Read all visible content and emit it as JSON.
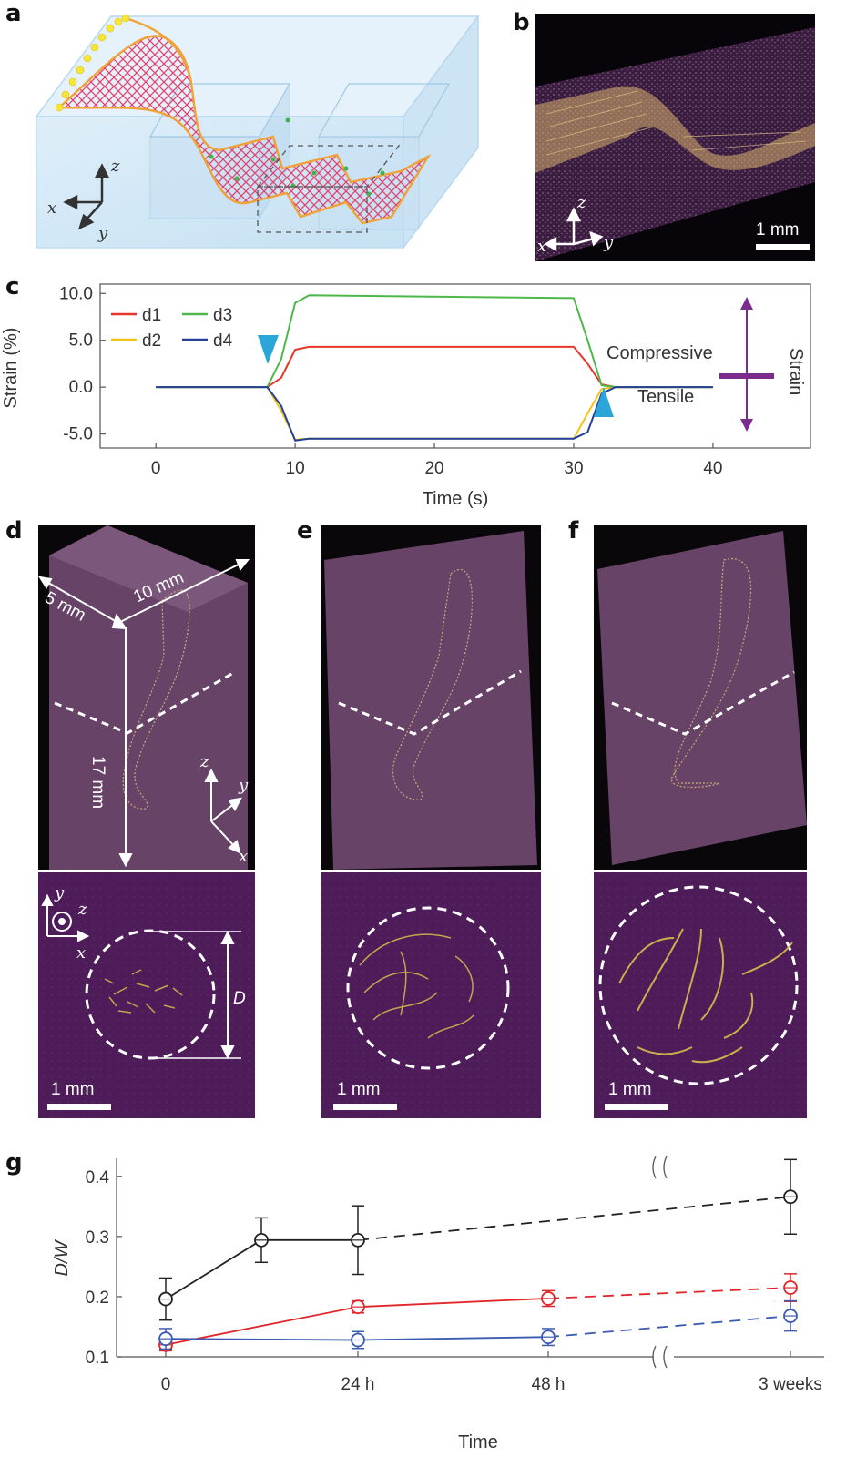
{
  "panels": {
    "a": "a",
    "b": "b",
    "c": "c",
    "d": "d",
    "e": "e",
    "f": "f",
    "g": "g"
  },
  "axis_letters": {
    "x": "x",
    "y": "y",
    "z": "z"
  },
  "scale_bar_label": "1 mm",
  "dimension_labels": {
    "width": "10 mm",
    "depth": "5 mm",
    "height": "17 mm",
    "diameter": "D"
  },
  "strain_annotations": {
    "compressive": "Compressive",
    "tensile": "Tensile",
    "strain": "Strain"
  },
  "colors": {
    "d1": "#e8352b",
    "d2": "#f2c21a",
    "d3": "#4db84a",
    "d4": "#23409a",
    "arrowhead": "#2aa6d8",
    "strain_symbol": "#7b2d8e",
    "gel_purple": "#5a2a5e",
    "black_series": "#222222",
    "red_series": "#e0262b",
    "blue_series": "#3a5bb0"
  },
  "chart_data": [
    {
      "type": "line",
      "panel": "c",
      "xlabel": "Time (s)",
      "ylabel": "Strain (%)",
      "xlim": [
        -4,
        47
      ],
      "ylim": [
        -6.5,
        11
      ],
      "xticks": [
        "0",
        "10",
        "20",
        "30",
        "40"
      ],
      "xtick_values": [
        0,
        10,
        20,
        30,
        40
      ],
      "yticks": [
        "10.0",
        "5.0",
        "0.0",
        "-5.0"
      ],
      "ytick_values": [
        10,
        5,
        0,
        -5
      ],
      "legend": "top-left",
      "series": [
        {
          "name": "d1",
          "x": [
            0,
            8,
            9,
            10,
            11,
            30,
            31,
            32,
            33,
            40
          ],
          "y": [
            0,
            0,
            1.0,
            4.0,
            4.3,
            4.3,
            2.5,
            0.3,
            0,
            0
          ]
        },
        {
          "name": "d2",
          "x": [
            0,
            8,
            9,
            10,
            11,
            30,
            31,
            32,
            33,
            40
          ],
          "y": [
            0,
            0,
            -2.5,
            -5.6,
            -5.5,
            -5.5,
            -2.8,
            -0.2,
            0,
            0
          ]
        },
        {
          "name": "d3",
          "x": [
            0,
            8,
            9,
            10,
            11,
            30,
            31,
            32,
            33,
            40
          ],
          "y": [
            0,
            0,
            3.0,
            9.0,
            9.8,
            9.5,
            5.0,
            0.2,
            0,
            0
          ]
        },
        {
          "name": "d4",
          "x": [
            0,
            8,
            9,
            10,
            11,
            30,
            31,
            32,
            33,
            40
          ],
          "y": [
            0,
            0,
            -2.0,
            -5.7,
            -5.5,
            -5.5,
            -4.8,
            -0.7,
            0,
            0
          ]
        }
      ]
    },
    {
      "type": "line",
      "panel": "g",
      "xlabel": "Time",
      "ylabel": "D/W",
      "ylim": [
        0.1,
        0.43
      ],
      "categories": [
        "0",
        "24 h",
        "48 h",
        "3 weeks"
      ],
      "yticks": [
        "0.4",
        "0.3",
        "0.2",
        "0.1"
      ],
      "ytick_values": [
        0.4,
        0.3,
        0.2,
        0.1
      ],
      "series": [
        {
          "x": [
            0,
            12,
            24,
            72
          ],
          "y": [
            0.196,
            0.294,
            0.294,
            0.366
          ],
          "err": [
            0.035,
            0.037,
            0.057,
            0.062
          ]
        },
        {
          "x": [
            0,
            24,
            48,
            72
          ],
          "y": [
            0.12,
            0.183,
            0.197,
            0.215
          ],
          "err": [
            0.01,
            0.01,
            0.013,
            0.023
          ]
        },
        {
          "x": [
            0,
            24,
            48,
            72
          ],
          "y": [
            0.13,
            0.128,
            0.133,
            0.168
          ],
          "err": [
            0.017,
            0.014,
            0.014,
            0.025
          ]
        }
      ]
    }
  ]
}
